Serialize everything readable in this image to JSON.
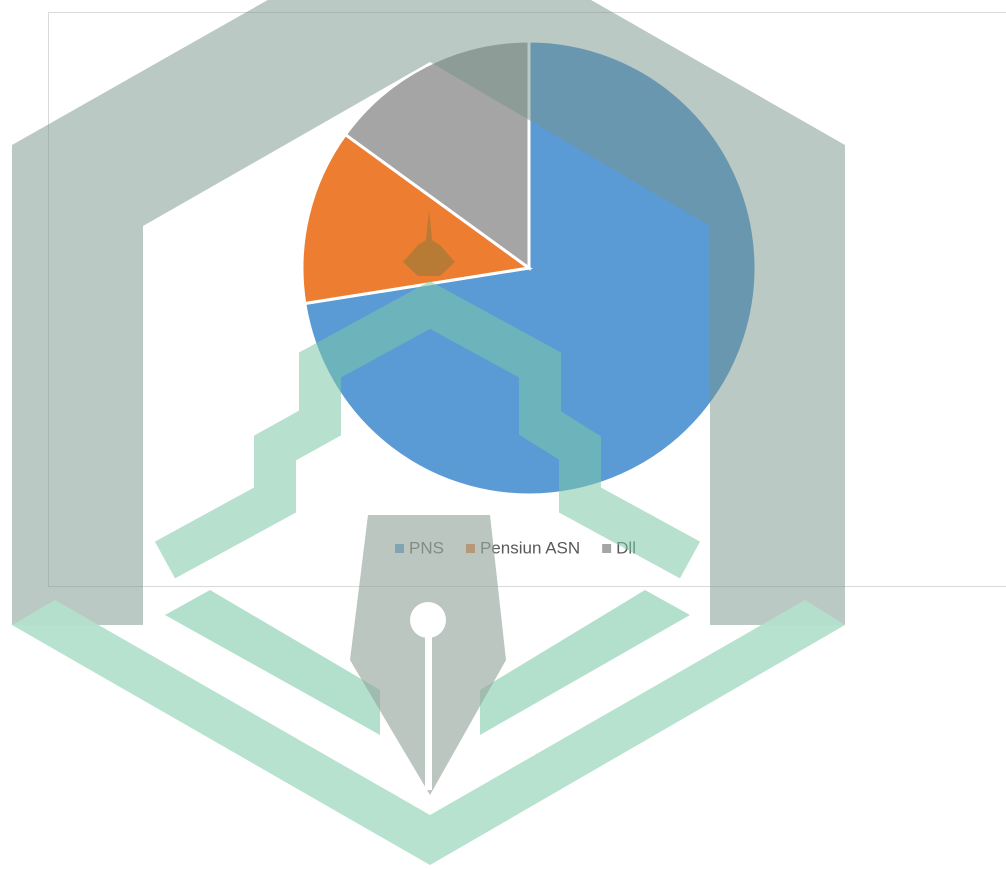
{
  "chart_data": {
    "type": "pie",
    "categories": [
      "PNS",
      "Pensiun ASN",
      "Dll"
    ],
    "values": [
      72.5,
      12.5,
      15
    ],
    "colors": [
      "#5b9bd5",
      "#ed7d31",
      "#a5a5a5"
    ]
  }
}
